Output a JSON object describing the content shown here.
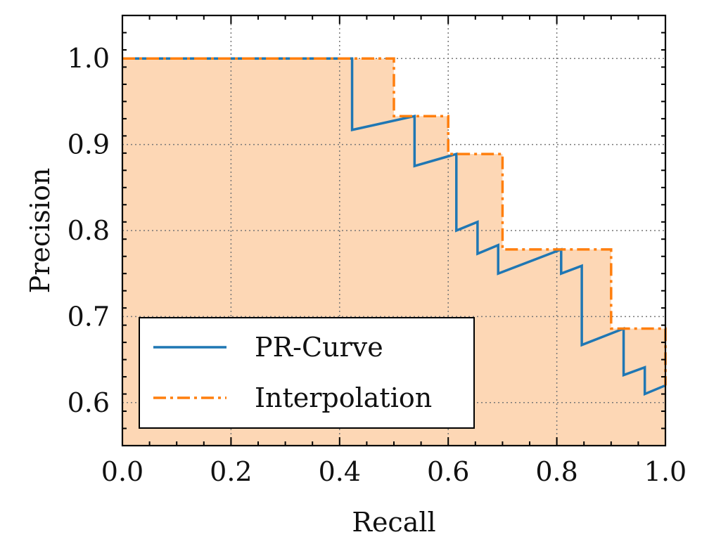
{
  "chart_data": {
    "type": "line",
    "xlabel": "Recall",
    "ylabel": "Precision",
    "xlim": [
      0.0,
      1.0
    ],
    "ylim": [
      0.55,
      1.05
    ],
    "xticks": [
      0.0,
      0.2,
      0.4,
      0.6,
      0.8,
      1.0
    ],
    "xtick_labels": [
      "0.0",
      "0.2",
      "0.4",
      "0.6",
      "0.8",
      "1.0"
    ],
    "yticks": [
      0.6,
      0.7,
      0.8,
      0.9,
      1.0
    ],
    "ytick_labels": [
      "0.6",
      "0.7",
      "0.8",
      "0.9",
      "1.0"
    ],
    "grid": true,
    "legend_position": "lower-left",
    "fill_under": "Interpolation",
    "series": [
      {
        "name": "PR-Curve",
        "color": "#1f77b4",
        "style": "solid",
        "x": [
          0.0,
          0.423,
          0.423,
          0.538,
          0.538,
          0.615,
          0.615,
          0.654,
          0.654,
          0.692,
          0.692,
          0.808,
          0.808,
          0.846,
          0.846,
          0.923,
          0.923,
          0.962,
          0.962,
          1.0
        ],
        "y": [
          1.0,
          1.0,
          0.917,
          0.933,
          0.875,
          0.889,
          0.8,
          0.81,
          0.773,
          0.783,
          0.75,
          0.778,
          0.75,
          0.759,
          0.667,
          0.686,
          0.632,
          0.641,
          0.61,
          0.62
        ]
      },
      {
        "name": "Interpolation",
        "color": "#ff7f0e",
        "style": "dashdot",
        "x": [
          0.0,
          0.5,
          0.5,
          0.6,
          0.6,
          0.7,
          0.7,
          0.9,
          0.9,
          1.0,
          1.0
        ],
        "y": [
          1.0,
          1.0,
          0.933,
          0.933,
          0.889,
          0.889,
          0.778,
          0.778,
          0.686,
          0.686,
          0.62
        ]
      }
    ],
    "fill_color": "#fdd7b5"
  }
}
